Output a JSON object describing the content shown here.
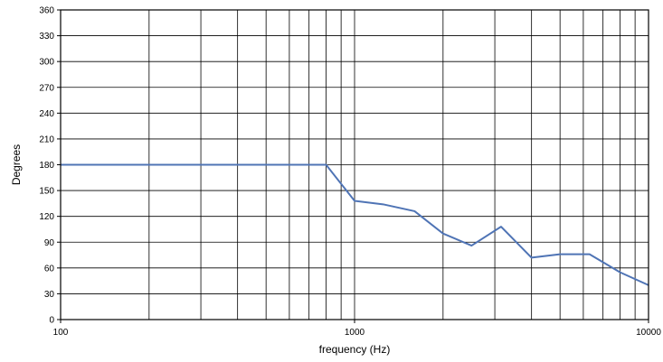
{
  "chart_data": {
    "type": "line",
    "title": "",
    "xlabel": "frequency (Hz)",
    "ylabel": "Degrees",
    "x_scale": "log",
    "xlim": [
      100,
      10000
    ],
    "ylim": [
      0,
      360
    ],
    "x_major_ticks": [
      100,
      1000,
      10000
    ],
    "x_tick_labels": [
      "100",
      "1000",
      "10000"
    ],
    "y_ticks": [
      0,
      30,
      60,
      90,
      120,
      150,
      180,
      210,
      240,
      270,
      300,
      330,
      360
    ],
    "y_tick_labels": [
      "0",
      "30",
      "60",
      "90",
      "120",
      "150",
      "180",
      "210",
      "240",
      "270",
      "300",
      "330",
      "360"
    ],
    "grid": true,
    "legend": "none",
    "line_color": "#4f74b5",
    "series": [
      {
        "x": [
          100,
          200,
          300,
          400,
          500,
          630,
          800,
          1000,
          1250,
          1600,
          2000,
          2500,
          3150,
          4000,
          5000,
          6300,
          8000,
          10000
        ],
        "y": [
          180,
          180,
          180,
          180,
          180,
          180,
          180,
          138,
          134,
          126,
          100,
          86,
          108,
          72,
          76,
          76,
          55,
          40
        ]
      }
    ]
  }
}
